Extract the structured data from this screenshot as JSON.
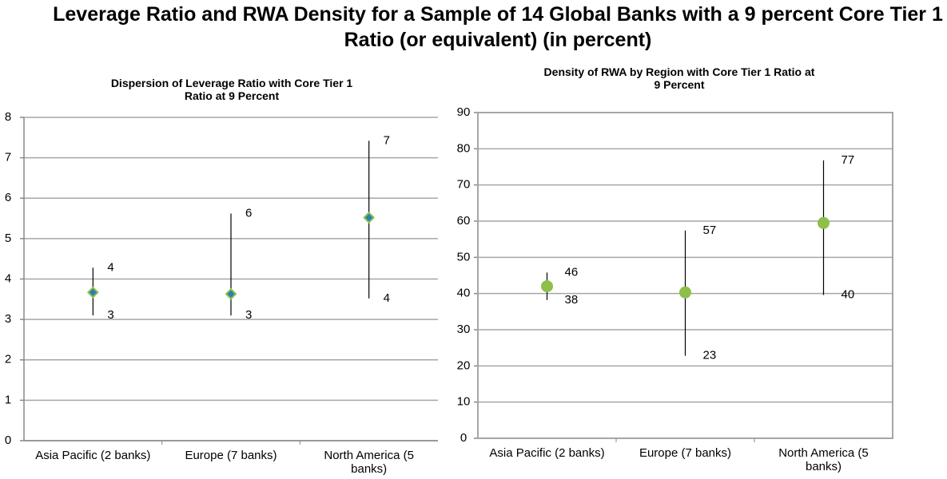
{
  "title": "Leverage Ratio and RWA Density for a Sample of 14 Global Banks with a 9 percent Core Tier 1 Ratio (or equivalent) (in percent)",
  "chart_data": [
    {
      "type": "errorbar",
      "title": "Dispersion of Leverage Ratio with Core Tier 1 Ratio at 9 Percent",
      "categories": [
        "Asia Pacific (2 banks)",
        "Europe (7 banks)",
        "North America (5 banks)"
      ],
      "values": [
        3.67,
        3.63,
        5.52
      ],
      "highs": [
        4.28,
        5.62,
        7.42
      ],
      "high_labels": [
        "4",
        "6",
        "7"
      ],
      "lows": [
        3.1,
        3.1,
        3.52
      ],
      "low_labels": [
        "3",
        "3",
        "4"
      ],
      "marker": "diamond",
      "color": "#2a7fb8",
      "edge_color": "#8dbf4a",
      "ylim": [
        0,
        8
      ],
      "yticks": [
        0,
        1,
        2,
        3,
        4,
        5,
        6,
        7,
        8
      ],
      "grid": true,
      "frame": false
    },
    {
      "type": "errorbar",
      "title": "Density of RWA by Region with Core Tier 1 Ratio at 9 Percent",
      "categories": [
        "Asia Pacific (2 banks)",
        "Europe (7 banks)",
        "North America (5 banks)"
      ],
      "values": [
        42,
        40.3,
        59.5
      ],
      "highs": [
        45.8,
        57.4,
        76.8
      ],
      "high_labels": [
        "46",
        "57",
        "77"
      ],
      "lows": [
        38.2,
        22.8,
        39.6
      ],
      "low_labels": [
        "38",
        "23",
        "40"
      ],
      "marker": "circle",
      "color": "#8dbf4a",
      "edge_color": "#8dbf4a",
      "ylim": [
        0,
        90
      ],
      "yticks": [
        0,
        10,
        20,
        30,
        40,
        50,
        60,
        70,
        80,
        90
      ],
      "grid": true,
      "frame": true
    }
  ]
}
